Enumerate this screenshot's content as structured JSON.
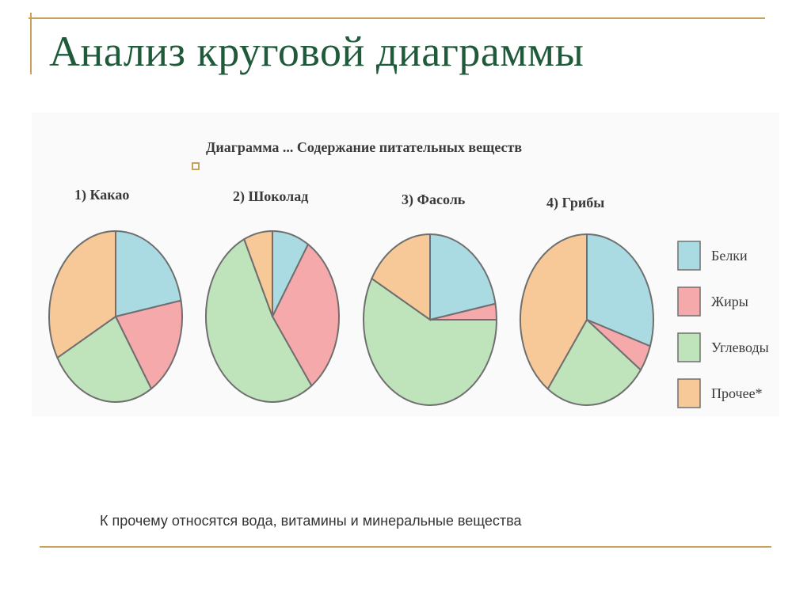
{
  "slide": {
    "title": "Анализ круговой диаграммы",
    "footnote": "К прочему относятся вода, витамины и минеральные вещества"
  },
  "colors": {
    "frame": "#c8a25a",
    "title": "#1f5a3a",
    "outline": "#6f6f6f"
  },
  "chart_data": {
    "type": "pie",
    "title": "Диаграмма ... Содержание питательных веществ",
    "categories": [
      "Белки",
      "Жиры",
      "Углеводы",
      "Прочее*"
    ],
    "colors": [
      "#abdbe2",
      "#f5a9aa",
      "#bfe3ba",
      "#f8c998"
    ],
    "legend_position": "right",
    "series": [
      {
        "label": "1) Какао",
        "values": [
          22,
          19,
          26,
          33
        ]
      },
      {
        "label": "2) Шоколад",
        "values": [
          9,
          31,
          53,
          7
        ]
      },
      {
        "label": "3) Фасоль",
        "values": [
          22,
          3,
          58,
          17
        ]
      },
      {
        "label": "4) Грибы",
        "values": [
          30,
          5,
          25,
          40
        ]
      }
    ]
  }
}
